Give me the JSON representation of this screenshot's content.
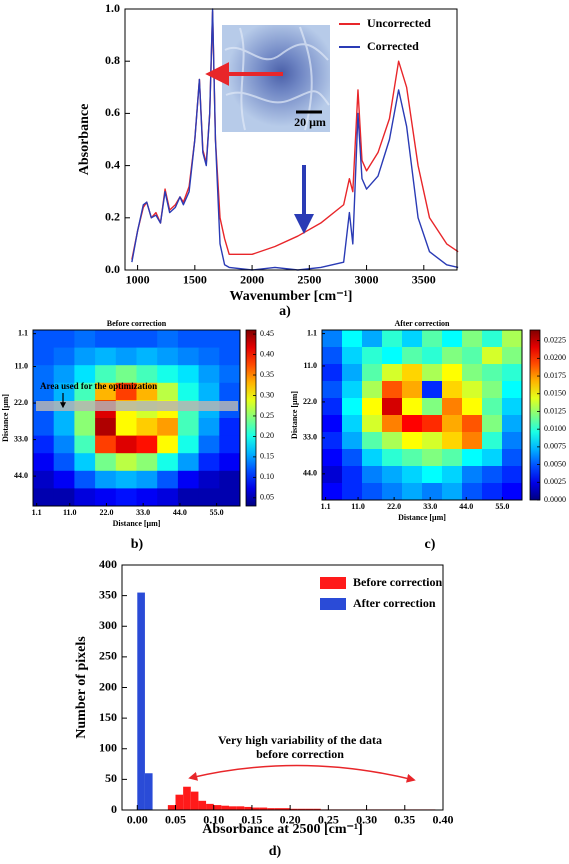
{
  "chart_data": [
    {
      "type": "line",
      "panel_label": "a)",
      "xlabel": "Wavenumber [cm⁻¹]",
      "ylabel": "Absorbance",
      "x": [
        950,
        1000,
        1050,
        1080,
        1120,
        1160,
        1200,
        1240,
        1280,
        1330,
        1370,
        1400,
        1450,
        1500,
        1540,
        1570,
        1600,
        1630,
        1655,
        1680,
        1720,
        1760,
        1800,
        2000,
        2200,
        2400,
        2600,
        2800,
        2850,
        2880,
        2925,
        2960,
        3000,
        3100,
        3200,
        3280,
        3350,
        3450,
        3550,
        3700,
        3800
      ],
      "series": [
        {
          "name": "Uncorrected",
          "color": "#e8262a",
          "values": [
            0.04,
            0.15,
            0.24,
            0.26,
            0.2,
            0.22,
            0.18,
            0.31,
            0.23,
            0.25,
            0.28,
            0.26,
            0.32,
            0.5,
            0.73,
            0.46,
            0.41,
            0.6,
            0.99,
            0.5,
            0.2,
            0.12,
            0.06,
            0.06,
            0.09,
            0.13,
            0.18,
            0.25,
            0.35,
            0.3,
            0.69,
            0.42,
            0.38,
            0.45,
            0.58,
            0.8,
            0.7,
            0.4,
            0.2,
            0.1,
            0.07
          ]
        },
        {
          "name": "Corrected",
          "color": "#2a3bb5",
          "values": [
            0.03,
            0.15,
            0.25,
            0.26,
            0.2,
            0.21,
            0.18,
            0.3,
            0.22,
            0.24,
            0.28,
            0.25,
            0.3,
            0.5,
            0.73,
            0.45,
            0.4,
            0.6,
            1.0,
            0.5,
            0.1,
            0.02,
            0.01,
            0.0,
            0.01,
            0.0,
            0.01,
            0.03,
            0.22,
            0.1,
            0.6,
            0.35,
            0.31,
            0.36,
            0.5,
            0.69,
            0.55,
            0.2,
            0.07,
            0.02,
            0.01
          ]
        }
      ],
      "xlim": [
        890,
        3790
      ],
      "ylim": [
        0,
        1
      ],
      "xticks": [
        1000,
        1500,
        2000,
        2500,
        3000,
        3500
      ],
      "yticks": [
        {
          "value": 0,
          "label": "0.0"
        },
        0.2,
        0.4,
        0.6,
        0.8,
        {
          "value": 1,
          "label": "1.0"
        }
      ],
      "legend": "upper right",
      "annotations": [
        "20 μm"
      ]
    },
    {
      "type": "heatmap",
      "panel_label": "b)",
      "title": "Before correction",
      "xlabel": "Distance [μm]",
      "ylabel": "Distance [μm]",
      "xlim": [
        0,
        62
      ],
      "ylim": [
        0,
        53
      ],
      "y_inverted": true,
      "xticks": [
        1.1,
        {
          "value": 11,
          "label": "11.0"
        },
        {
          "value": 22,
          "label": "22.0"
        },
        {
          "value": 33,
          "label": "33.0"
        },
        {
          "value": 44,
          "label": "44.0"
        },
        {
          "value": 55,
          "label": "55.0"
        }
      ],
      "yticks": [
        1.1,
        {
          "value": 11,
          "label": "11.0"
        },
        {
          "value": 22,
          "label": "22.0"
        },
        {
          "value": 33,
          "label": "33.0"
        },
        {
          "value": 44,
          "label": "44.0"
        }
      ],
      "zlim": [
        0.03,
        0.46
      ],
      "colorbar_ticks": [
        0.05,
        {
          "value": 0.1,
          "label": "0.10"
        },
        0.15,
        {
          "value": 0.2,
          "label": "0.20"
        },
        0.25,
        {
          "value": 0.3,
          "label": "0.30"
        },
        0.35,
        {
          "value": 0.4,
          "label": "0.40"
        },
        0.45
      ],
      "z": [
        [
          0.12,
          0.12,
          0.13,
          0.12,
          0.12,
          0.12,
          0.13,
          0.12,
          0.12,
          0.12
        ],
        [
          0.12,
          0.13,
          0.15,
          0.16,
          0.15,
          0.16,
          0.15,
          0.14,
          0.13,
          0.12
        ],
        [
          0.13,
          0.15,
          0.18,
          0.22,
          0.24,
          0.22,
          0.2,
          0.18,
          0.15,
          0.13
        ],
        [
          0.13,
          0.16,
          0.22,
          0.33,
          0.38,
          0.33,
          0.27,
          0.2,
          0.16,
          0.12
        ],
        [
          0.12,
          0.16,
          0.25,
          0.42,
          0.3,
          0.28,
          0.3,
          0.22,
          0.16,
          0.12
        ],
        [
          0.12,
          0.16,
          0.25,
          0.44,
          0.3,
          0.32,
          0.34,
          0.22,
          0.15,
          0.1
        ],
        [
          0.1,
          0.14,
          0.22,
          0.38,
          0.42,
          0.4,
          0.3,
          0.2,
          0.13,
          0.1
        ],
        [
          0.08,
          0.12,
          0.17,
          0.24,
          0.27,
          0.25,
          0.2,
          0.15,
          0.1,
          0.08
        ],
        [
          0.06,
          0.08,
          0.12,
          0.15,
          0.16,
          0.15,
          0.12,
          0.08,
          0.06,
          0.05
        ],
        [
          0.05,
          0.05,
          0.07,
          0.08,
          0.09,
          0.08,
          0.07,
          0.05,
          0.05,
          0.05
        ]
      ],
      "annotations": [
        "Area used for the optimization"
      ]
    },
    {
      "type": "heatmap",
      "panel_label": "c)",
      "title": "After correction",
      "xlabel": "Distance [μm]",
      "ylabel": "Distance [μm]",
      "xlim": [
        0,
        61
      ],
      "ylim": [
        0,
        52
      ],
      "y_inverted": true,
      "xticks": [
        1.1,
        {
          "value": 11,
          "label": "11.0"
        },
        {
          "value": 22,
          "label": "22.0"
        },
        {
          "value": 33,
          "label": "33.0"
        },
        {
          "value": 44,
          "label": "44.0"
        },
        {
          "value": 55,
          "label": "55.0"
        }
      ],
      "yticks": [
        1.1,
        {
          "value": 11,
          "label": "11.0"
        },
        {
          "value": 22,
          "label": "22.0"
        },
        {
          "value": 33,
          "label": "33.0"
        },
        {
          "value": 44,
          "label": "44.0"
        }
      ],
      "zlim": [
        0,
        0.024
      ],
      "colorbar_ticks": [
        {
          "value": 0,
          "label": "0.0000"
        },
        {
          "value": 0.0025,
          "label": "0.0025"
        },
        {
          "value": 0.005,
          "label": "0.0050"
        },
        {
          "value": 0.0075,
          "label": "0.0075"
        },
        {
          "value": 0.01,
          "label": "0.0100"
        },
        {
          "value": 0.0125,
          "label": "0.0125"
        },
        {
          "value": 0.015,
          "label": "0.0150"
        },
        {
          "value": 0.0175,
          "label": "0.0175"
        },
        {
          "value": 0.02,
          "label": "0.0200"
        },
        {
          "value": 0.0225,
          "label": "0.0225"
        }
      ],
      "z": [
        [
          0.006,
          0.009,
          0.007,
          0.01,
          0.008,
          0.011,
          0.009,
          0.012,
          0.01,
          0.013
        ],
        [
          0.005,
          0.008,
          0.01,
          0.009,
          0.011,
          0.01,
          0.012,
          0.011,
          0.014,
          0.012
        ],
        [
          0.004,
          0.007,
          0.011,
          0.014,
          0.016,
          0.013,
          0.015,
          0.012,
          0.011,
          0.01
        ],
        [
          0.005,
          0.008,
          0.013,
          0.019,
          0.017,
          0.004,
          0.016,
          0.014,
          0.012,
          0.009
        ],
        [
          0.004,
          0.009,
          0.015,
          0.022,
          0.015,
          0.012,
          0.018,
          0.015,
          0.011,
          0.008
        ],
        [
          0.003,
          0.008,
          0.014,
          0.018,
          0.021,
          0.02,
          0.017,
          0.019,
          0.012,
          0.007
        ],
        [
          0.004,
          0.007,
          0.011,
          0.013,
          0.015,
          0.014,
          0.016,
          0.018,
          0.01,
          0.006
        ],
        [
          0.003,
          0.005,
          0.008,
          0.01,
          0.011,
          0.012,
          0.011,
          0.009,
          0.008,
          0.005
        ],
        [
          0.002,
          0.004,
          0.006,
          0.007,
          0.008,
          0.009,
          0.008,
          0.006,
          0.005,
          0.004
        ],
        [
          0.003,
          0.004,
          0.005,
          0.006,
          0.007,
          0.006,
          0.007,
          0.005,
          0.004,
          0.003
        ]
      ]
    },
    {
      "type": "histogram",
      "panel_label": "d)",
      "xlabel": "Absorbance at 2500 [cm⁻¹]",
      "ylabel": "Number of pixels",
      "bins": [
        0,
        0.01,
        0.02,
        0.03,
        0.04,
        0.05,
        0.06,
        0.07,
        0.08,
        0.09,
        0.1,
        0.11,
        0.12,
        0.13,
        0.14,
        0.15,
        0.16,
        0.17,
        0.18,
        0.19,
        0.2,
        0.21,
        0.22,
        0.23,
        0.24,
        0.25,
        0.26,
        0.27,
        0.28,
        0.29,
        0.3,
        0.31,
        0.32,
        0.33,
        0.34,
        0.35,
        0.36,
        0.37,
        0.38,
        0.39,
        0.4
      ],
      "series": [
        {
          "name": "Before correction",
          "color": "#ff1a1a",
          "values": [
            0,
            0,
            0,
            0,
            8,
            25,
            38,
            30,
            15,
            10,
            8,
            7,
            6,
            6,
            5,
            4,
            4,
            3,
            3,
            3,
            2,
            2,
            2,
            2,
            1,
            1,
            1,
            1,
            1,
            1,
            1,
            1,
            1,
            1,
            1,
            1,
            1,
            1,
            1,
            0
          ]
        },
        {
          "name": "After correction",
          "color": "#2a4bd7",
          "values": [
            355,
            60,
            0,
            0,
            0,
            0,
            0,
            0,
            0,
            0,
            0,
            0,
            0,
            0,
            0,
            0,
            0,
            0,
            0,
            0,
            0,
            0,
            0,
            0,
            0,
            0,
            0,
            0,
            0,
            0,
            0,
            0,
            0,
            0,
            0,
            0,
            0,
            0,
            0,
            0
          ]
        }
      ],
      "xlim": [
        -0.02,
        0.4
      ],
      "ylim": [
        0,
        400
      ],
      "xticks": [
        {
          "value": 0,
          "label": "0.00"
        },
        {
          "value": 0.05,
          "label": "0.05"
        },
        {
          "value": 0.1,
          "label": "0.10"
        },
        {
          "value": 0.15,
          "label": "0.15"
        },
        {
          "value": 0.2,
          "label": "0.20"
        },
        {
          "value": 0.25,
          "label": "0.25"
        },
        {
          "value": 0.3,
          "label": "0.30"
        },
        {
          "value": 0.35,
          "label": "0.35"
        },
        {
          "value": 0.4,
          "label": "0.40"
        }
      ],
      "yticks": [
        0,
        50,
        100,
        150,
        200,
        250,
        300,
        350,
        400
      ],
      "legend": "upper right",
      "annotations": [
        "Very high variability of the data",
        "before correction"
      ]
    }
  ]
}
